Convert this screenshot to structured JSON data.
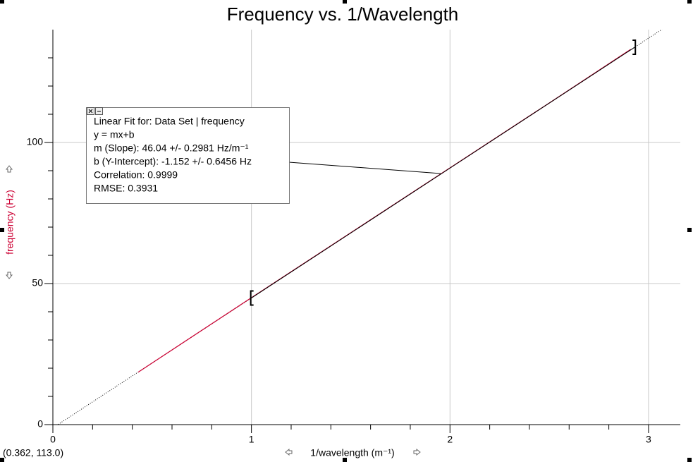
{
  "chart_data": {
    "type": "line",
    "title": "Frequency vs. 1/Wavelength",
    "x_label": "1/wavelength (m⁻¹)",
    "y_label": "frequency (Hz)",
    "x": [
      0.43,
      1.0,
      1.5,
      2.0,
      2.5,
      2.91
    ],
    "series": [
      {
        "name": "frequency",
        "color": "#cc0033",
        "values": [
          18.6,
          45,
          68,
          91,
          114,
          133
        ]
      }
    ],
    "xlim": [
      0,
      3.16
    ],
    "ylim": [
      0,
      140
    ],
    "xticks": [
      0,
      1,
      2,
      3
    ],
    "yticks": [
      0,
      50,
      100
    ],
    "xminorticks": [
      0.2,
      0.4,
      0.6,
      0.8,
      1.2,
      1.4,
      1.6,
      1.8,
      2.2,
      2.4,
      2.6,
      2.8
    ],
    "yminorticks": [
      10,
      20,
      30,
      40,
      60,
      70,
      80,
      90,
      110,
      120,
      130
    ],
    "grid": true,
    "fit": {
      "slope": 46.04,
      "intercept": -1.152,
      "range": [
        1.0,
        2.93
      ],
      "color": "#000000",
      "box_lines": [
        "Linear Fit for:  Data Set | frequency",
        "y = mx+b",
        "m (Slope): 46.04 +/- 0.2981 Hz/m⁻¹",
        "b (Y-Intercept): -1.152 +/- 0.6456 Hz",
        "Correlation: 0.9999",
        "RMSE: 0.3931"
      ]
    },
    "status": "(0.362, 113.0)"
  }
}
